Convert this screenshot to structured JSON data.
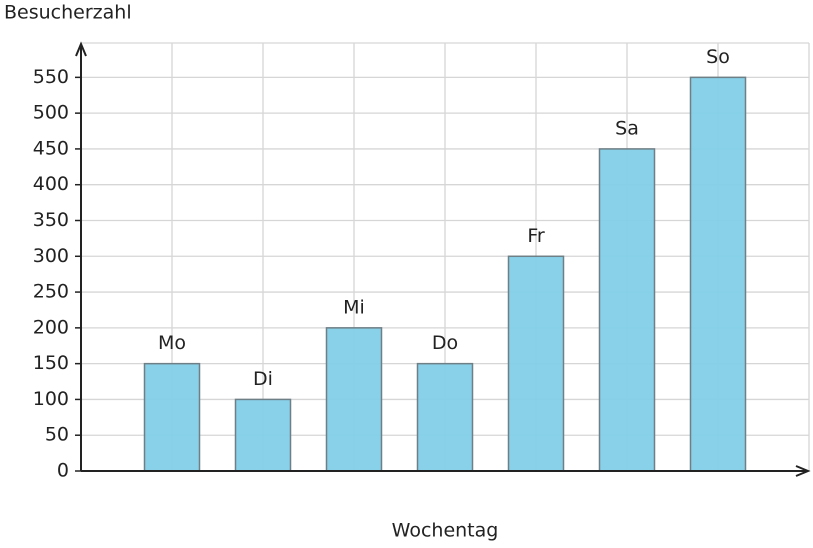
{
  "chart_data": {
    "type": "bar",
    "y_label": "Besucherzahl",
    "x_label": "Wochentag",
    "categories": [
      "Mo",
      "Di",
      "Mi",
      "Do",
      "Fr",
      "Sa",
      "So"
    ],
    "values": [
      150,
      100,
      200,
      150,
      300,
      450,
      550
    ],
    "color": "#82cfe8",
    "ylim": [
      0,
      598
    ],
    "yticks": [
      0,
      50,
      100,
      150,
      200,
      250,
      300,
      350,
      400,
      450,
      500,
      550
    ],
    "grid": true
  }
}
